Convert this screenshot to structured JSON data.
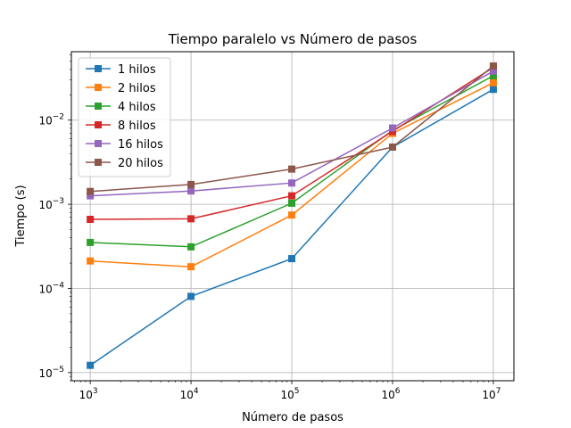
{
  "chart_data": {
    "type": "line",
    "title": "Tiempo paralelo vs Número de pasos",
    "xlabel": "Número de pasos",
    "ylabel": "Tiempo (s)",
    "xscale": "log",
    "yscale": "log",
    "x": [
      1000,
      10000,
      100000,
      1000000,
      10000000
    ],
    "xlim": [
      650,
      16000000
    ],
    "ylim": [
      8e-06,
      0.065
    ],
    "x_ticks": [
      {
        "value": 1000,
        "base": "10",
        "exp": "3"
      },
      {
        "value": 10000,
        "base": "10",
        "exp": "4"
      },
      {
        "value": 100000,
        "base": "10",
        "exp": "5"
      },
      {
        "value": 1000000,
        "base": "10",
        "exp": "6"
      },
      {
        "value": 10000000,
        "base": "10",
        "exp": "7"
      }
    ],
    "y_ticks": [
      {
        "value": 1e-05,
        "base": "10",
        "exp": "−5"
      },
      {
        "value": 0.0001,
        "base": "10",
        "exp": "−4"
      },
      {
        "value": 0.001,
        "base": "10",
        "exp": "−3"
      },
      {
        "value": 0.01,
        "base": "10",
        "exp": "−2"
      }
    ],
    "grid": true,
    "legend_position": "top-left",
    "series": [
      {
        "name": "1 hilos",
        "color": "#1f77b4",
        "values": [
          1.22e-05,
          8.05e-05,
          0.000226,
          0.00478,
          0.0232
        ]
      },
      {
        "name": "2 hilos",
        "color": "#ff7f0e",
        "values": [
          0.000212,
          0.000181,
          0.000745,
          0.00695,
          0.0278
        ]
      },
      {
        "name": "4 hilos",
        "color": "#2ca02c",
        "values": [
          0.000352,
          0.000312,
          0.00103,
          0.00755,
          0.0336
        ]
      },
      {
        "name": "8 hilos",
        "color": "#d62728",
        "values": [
          0.000662,
          0.000672,
          0.00126,
          0.00735,
          0.0423
        ]
      },
      {
        "name": "16 hilos",
        "color": "#9467bd",
        "values": [
          0.00126,
          0.00144,
          0.00179,
          0.00806,
          0.0382
        ]
      },
      {
        "name": "20 hilos",
        "color": "#8c564b",
        "values": [
          0.00142,
          0.00172,
          0.00262,
          0.00478,
          0.044
        ]
      }
    ]
  }
}
